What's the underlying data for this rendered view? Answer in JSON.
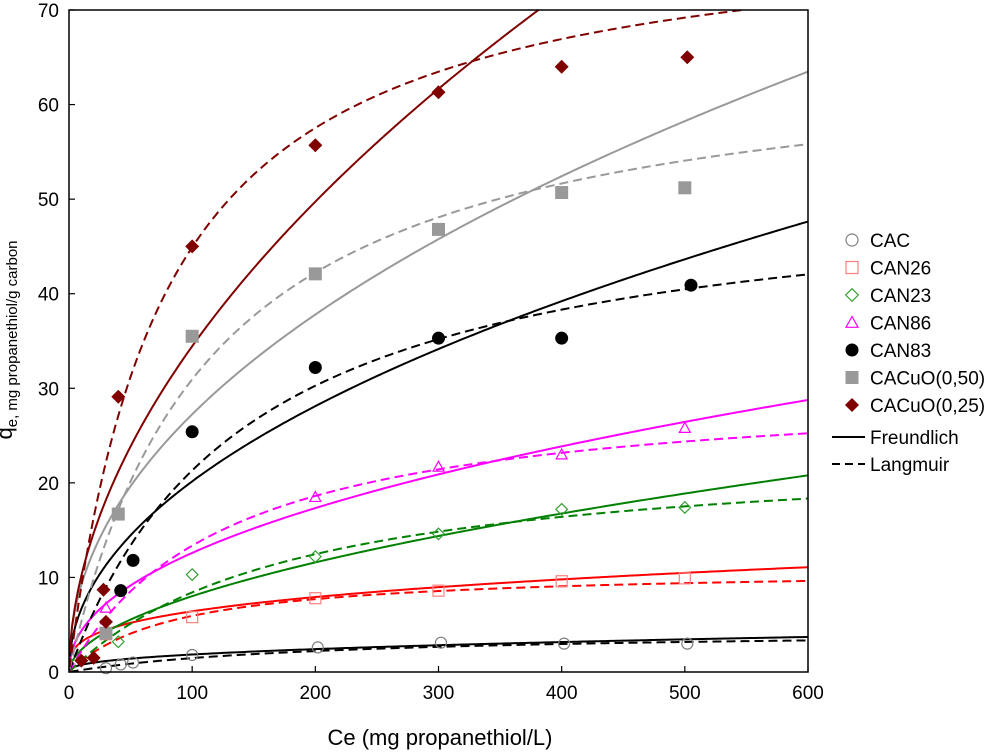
{
  "chart_data": {
    "type": "scatter",
    "title": "",
    "xlabel": "Ce (mg propanethiol/L)",
    "ylabel": {
      "main": "q",
      "subscript": "e, mg propanethiol/g carbon"
    },
    "xlim": [
      0,
      600
    ],
    "ylim": [
      0,
      70
    ],
    "xticks": [
      0,
      100,
      200,
      300,
      400,
      500,
      600
    ],
    "yticks": [
      0,
      10,
      20,
      30,
      40,
      50,
      60,
      70
    ],
    "legend_position": "right",
    "series": [
      {
        "name": "CAC",
        "marker": "circle-open",
        "color": "#808080",
        "x": [
          30,
          42,
          52,
          100,
          202,
          302,
          402,
          502
        ],
        "y": [
          0.4,
          0.8,
          1.0,
          1.8,
          2.6,
          3.1,
          3.0,
          3.0
        ],
        "freundlich": {
          "K": 0.3097,
          "n": 0.388,
          "color": "#000000"
        },
        "langmuir": {
          "qmax": 4.48,
          "b": 0.00488,
          "color": "#000000"
        }
      },
      {
        "name": "CAN26",
        "marker": "square-open",
        "color": "#ff8080",
        "x": [
          30,
          100,
          200,
          300,
          400,
          500
        ],
        "y": [
          4.0,
          5.8,
          7.8,
          8.6,
          9.6,
          9.9
        ],
        "freundlich": {
          "K": 1.575,
          "n": 0.305,
          "color": "#ff0000"
        },
        "langmuir": {
          "qmax": 11.0,
          "b": 0.0117,
          "color": "#ff0000"
        }
      },
      {
        "name": "CAN23",
        "marker": "diamond-open",
        "color": "#33a033",
        "x": [
          40,
          100,
          200,
          300,
          400,
          500
        ],
        "y": [
          3.2,
          10.3,
          12.2,
          14.6,
          17.2,
          17.4
        ],
        "freundlich": {
          "K": 0.6917,
          "n": 0.532,
          "color": "#008000"
        },
        "langmuir": {
          "qmax": 24.0,
          "b": 0.0054,
          "color": "#008000"
        }
      },
      {
        "name": "CAN86",
        "marker": "triangle-open",
        "color": "#ff00ff",
        "x": [
          30,
          200,
          300,
          400,
          500
        ],
        "y": [
          6.8,
          18.5,
          21.7,
          23.0,
          25.8
        ],
        "freundlich": {
          "K": 1.507,
          "n": 0.461,
          "color": "#ff00ff"
        },
        "langmuir": {
          "qmax": 30.7,
          "b": 0.0077,
          "color": "#ff00ff"
        }
      },
      {
        "name": "CAN83",
        "marker": "circle-filled",
        "color": "#000000",
        "x": [
          42,
          52,
          100,
          200,
          300,
          400,
          505
        ],
        "y": [
          8.6,
          11.8,
          25.4,
          32.2,
          35.3,
          35.3,
          40.9
        ],
        "freundlich": {
          "K": 2.21,
          "n": 0.48,
          "color": "#000000"
        },
        "langmuir": {
          "qmax": 52.2,
          "b": 0.0069,
          "color": "#000000"
        }
      },
      {
        "name": "CACuO(0,50)",
        "marker": "square-filled",
        "color": "#999999",
        "x": [
          30,
          40,
          100,
          200,
          300,
          400,
          500
        ],
        "y": [
          4.1,
          16.7,
          35.5,
          42.1,
          46.8,
          50.7,
          51.2
        ],
        "freundlich": {
          "K": 3.1,
          "n": 0.472,
          "color": "#999999"
        },
        "langmuir": {
          "qmax": 66.5,
          "b": 0.0087,
          "color": "#999999"
        }
      },
      {
        "name": "CACuO(0,25)",
        "marker": "diamond-filled",
        "color": "#800000",
        "x": [
          10,
          20,
          28,
          30,
          40,
          100,
          200,
          300,
          400,
          502
        ],
        "y": [
          1.2,
          1.5,
          8.7,
          5.3,
          29.1,
          45.0,
          55.7,
          61.3,
          64.0,
          65.0
        ],
        "freundlich": {
          "K": 3.0,
          "n": 0.53,
          "color": "#800000"
        },
        "langmuir": {
          "qmax": 80.0,
          "b": 0.0128,
          "color": "#800000"
        }
      }
    ],
    "fit_legend": [
      {
        "name": "Freundlich",
        "style": "solid"
      },
      {
        "name": "Langmuir",
        "style": "dashed"
      }
    ]
  }
}
